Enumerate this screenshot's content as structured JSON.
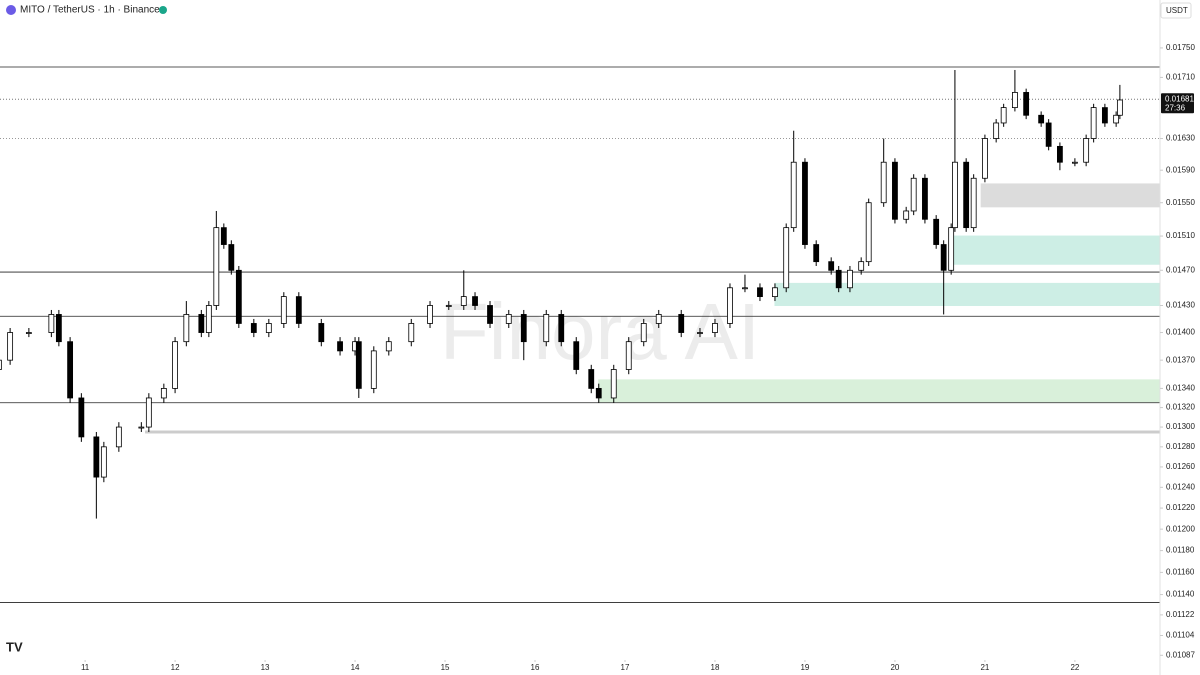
{
  "header": {
    "title": "MITO / TetherUS · 1h · Binance",
    "currency": "USDT"
  },
  "watermark": "Finora AI",
  "chart_data": {
    "type": "candlestick",
    "up_color": "#ffffff",
    "down_color": "#000000",
    "outline_color": "#000000",
    "log_scale": true,
    "ylim": [
      0.01083,
      0.01817
    ],
    "xlim": [
      -22.7,
      286.7
    ],
    "yticks": [
      {
        "value": 0.0175,
        "label": "0.01750"
      },
      {
        "value": 0.0171,
        "label": "0.01710"
      },
      {
        "value": 0.0163,
        "label": "0.01630"
      },
      {
        "value": 0.0159,
        "label": "0.01590"
      },
      {
        "value": 0.0155,
        "label": "0.01550"
      },
      {
        "value": 0.0151,
        "label": "0.01510"
      },
      {
        "value": 0.0147,
        "label": "0.01470"
      },
      {
        "value": 0.0143,
        "label": "0.01430"
      },
      {
        "value": 0.014,
        "label": "0.01400"
      },
      {
        "value": 0.0137,
        "label": "0.01370"
      },
      {
        "value": 0.0134,
        "label": "0.01340"
      },
      {
        "value": 0.0132,
        "label": "0.01320"
      },
      {
        "value": 0.013,
        "label": "0.01300"
      },
      {
        "value": 0.0128,
        "label": "0.01280"
      },
      {
        "value": 0.0126,
        "label": "0.01260"
      },
      {
        "value": 0.0124,
        "label": "0.01240"
      },
      {
        "value": 0.0122,
        "label": "0.01220"
      },
      {
        "value": 0.012,
        "label": "0.01200"
      },
      {
        "value": 0.0118,
        "label": "0.01180"
      },
      {
        "value": 0.0116,
        "label": "0.01160"
      },
      {
        "value": 0.0114,
        "label": "0.01140"
      },
      0.01122,
      0.01104,
      0.01087
    ],
    "xticks": [
      {
        "value": 0,
        "label": "11"
      },
      {
        "value": 24,
        "label": "12"
      },
      {
        "value": 48,
        "label": "13"
      },
      {
        "value": 72,
        "label": "14"
      },
      {
        "value": 96,
        "label": "15"
      },
      {
        "value": 120,
        "label": "16"
      },
      {
        "value": 144,
        "label": "17"
      },
      {
        "value": 168,
        "label": "18"
      },
      {
        "value": 192,
        "label": "19"
      },
      {
        "value": 216,
        "label": "20"
      },
      {
        "value": 240,
        "label": "21"
      },
      {
        "value": 264,
        "label": "22"
      }
    ],
    "x": [
      -23,
      -20,
      -15,
      -9,
      -7,
      -4,
      -1,
      3,
      5,
      9,
      15,
      17,
      21,
      24,
      27,
      31,
      33,
      35,
      37,
      39,
      41,
      45,
      49,
      53,
      57,
      63,
      68,
      72,
      73,
      77,
      81,
      87,
      92,
      97,
      101,
      104,
      108,
      113,
      117,
      123,
      127,
      131,
      135,
      137,
      141,
      145,
      149,
      153,
      159,
      164,
      168,
      172,
      176,
      180,
      184,
      187,
      189,
      192,
      195,
      199,
      201,
      204,
      207,
      209,
      213,
      216,
      219,
      221,
      224,
      227,
      229,
      231,
      232,
      235,
      237,
      240,
      243,
      245,
      248,
      251,
      255,
      257,
      260,
      264,
      267,
      269,
      272,
      275,
      276
    ],
    "open": [
      0.0136,
      0.0137,
      0.014,
      0.014,
      0.0142,
      0.0139,
      0.0133,
      0.0129,
      0.0125,
      0.0128,
      0.013,
      0.013,
      0.0133,
      0.0134,
      0.0139,
      0.0142,
      0.014,
      0.0143,
      0.0152,
      0.015,
      0.0147,
      0.0141,
      0.014,
      0.0141,
      0.0144,
      0.0141,
      0.0139,
      0.0138,
      0.0139,
      0.0134,
      0.0138,
      0.0139,
      0.0141,
      0.0143,
      0.0143,
      0.0144,
      0.0143,
      0.0141,
      0.0142,
      0.0139,
      0.0142,
      0.0139,
      0.0136,
      0.0134,
      0.0133,
      0.0136,
      0.0139,
      0.0141,
      0.0142,
      0.014,
      0.014,
      0.0141,
      0.0145,
      0.0145,
      0.0144,
      0.0145,
      0.0152,
      0.016,
      0.015,
      0.0148,
      0.0147,
      0.0145,
      0.0147,
      0.0148,
      0.0155,
      0.016,
      0.0153,
      0.0154,
      0.0158,
      0.0153,
      0.015,
      0.0147,
      0.0152,
      0.016,
      0.0152,
      0.0158,
      0.0163,
      0.0165,
      0.0167,
      0.0169,
      0.0166,
      0.0165,
      0.0162,
      0.016,
      0.016,
      0.0163,
      0.0167,
      0.0165,
      0.0166
    ],
    "high": [
      0.01375,
      0.01405,
      0.01405,
      0.01425,
      0.01425,
      0.01395,
      0.01335,
      0.01295,
      0.01285,
      0.01305,
      0.01305,
      0.01335,
      0.01345,
      0.01395,
      0.01435,
      0.01425,
      0.01435,
      0.0154,
      0.01525,
      0.01505,
      0.01475,
      0.01415,
      0.01415,
      0.01445,
      0.01445,
      0.01415,
      0.01395,
      0.01395,
      0.01395,
      0.01385,
      0.01395,
      0.01415,
      0.01435,
      0.01435,
      0.0147,
      0.01445,
      0.01435,
      0.01425,
      0.01425,
      0.01425,
      0.01425,
      0.01395,
      0.01365,
      0.01345,
      0.01365,
      0.01395,
      0.01415,
      0.01425,
      0.01425,
      0.01405,
      0.01415,
      0.01455,
      0.01465,
      0.01455,
      0.01455,
      0.01525,
      0.0164,
      0.01605,
      0.01505,
      0.01485,
      0.01475,
      0.01475,
      0.01485,
      0.01555,
      0.0163,
      0.01605,
      0.01545,
      0.01585,
      0.01585,
      0.01535,
      0.01505,
      0.01525,
      0.0172,
      0.01605,
      0.01585,
      0.01635,
      0.01655,
      0.01675,
      0.0172,
      0.01695,
      0.01665,
      0.01655,
      0.01625,
      0.01605,
      0.01635,
      0.01675,
      0.01675,
      0.01665,
      0.017
    ],
    "low": [
      0.01355,
      0.01365,
      0.01395,
      0.01395,
      0.01385,
      0.01325,
      0.01285,
      0.0121,
      0.01245,
      0.01275,
      0.01295,
      0.01295,
      0.01325,
      0.01335,
      0.01385,
      0.01395,
      0.01395,
      0.01425,
      0.01495,
      0.01465,
      0.01405,
      0.01395,
      0.01395,
      0.01405,
      0.01405,
      0.01385,
      0.01375,
      0.01375,
      0.0133,
      0.01335,
      0.01375,
      0.01385,
      0.01405,
      0.01425,
      0.01425,
      0.01425,
      0.01405,
      0.01405,
      0.0137,
      0.01385,
      0.01385,
      0.01355,
      0.01335,
      0.01325,
      0.01325,
      0.01355,
      0.01385,
      0.01405,
      0.01395,
      0.01395,
      0.01395,
      0.01405,
      0.01445,
      0.01435,
      0.01435,
      0.01445,
      0.01515,
      0.01495,
      0.01475,
      0.01465,
      0.01445,
      0.01445,
      0.01465,
      0.01475,
      0.01545,
      0.01525,
      0.01525,
      0.01535,
      0.01525,
      0.01495,
      0.0142,
      0.01465,
      0.01515,
      0.01515,
      0.01515,
      0.01575,
      0.01625,
      0.01645,
      0.01665,
      0.01655,
      0.01645,
      0.01615,
      0.0159,
      0.01595,
      0.01595,
      0.01625,
      0.01645,
      0.01645,
      0.01655
    ],
    "close": [
      0.0137,
      0.014,
      0.014,
      0.0142,
      0.0139,
      0.0133,
      0.0129,
      0.0125,
      0.0128,
      0.013,
      0.013,
      0.0133,
      0.0134,
      0.0139,
      0.0142,
      0.014,
      0.0143,
      0.0152,
      0.015,
      0.0147,
      0.0141,
      0.014,
      0.0141,
      0.0144,
      0.0141,
      0.0139,
      0.0138,
      0.0139,
      0.0134,
      0.0138,
      0.0139,
      0.0141,
      0.0143,
      0.0143,
      0.0144,
      0.0143,
      0.0141,
      0.0142,
      0.0139,
      0.0142,
      0.0139,
      0.0136,
      0.0134,
      0.0133,
      0.0136,
      0.0139,
      0.0141,
      0.0142,
      0.014,
      0.014,
      0.0141,
      0.0145,
      0.0145,
      0.0144,
      0.0145,
      0.0152,
      0.016,
      0.015,
      0.0148,
      0.0147,
      0.0145,
      0.0147,
      0.0148,
      0.0155,
      0.016,
      0.0153,
      0.0154,
      0.0158,
      0.0153,
      0.015,
      0.0147,
      0.0152,
      0.016,
      0.0152,
      0.0158,
      0.0163,
      0.0165,
      0.0167,
      0.0169,
      0.0166,
      0.0165,
      0.0162,
      0.016,
      0.016,
      0.0163,
      0.0167,
      0.0165,
      0.0166,
      0.0168
    ],
    "levels": [
      0.01724,
      0.01468,
      0.01418,
      0.01325,
      0.01133
    ],
    "support_line": {
      "value": 0.01295,
      "start": 16,
      "color": "#cccccc"
    },
    "dotted_levels": [
      0.0163
    ],
    "last_price": 0.01681,
    "countdown": "27:36",
    "zones": [
      {
        "low": 0.01545,
        "high": 0.01573,
        "start": 239,
        "color": "#dcdcdc"
      },
      {
        "low": 0.01477,
        "high": 0.0151,
        "start": 231,
        "color": "#cdeee5"
      },
      {
        "low": 0.0143,
        "high": 0.01455,
        "start": 184,
        "color": "#cdeee5"
      },
      {
        "low": 0.01326,
        "high": 0.01349,
        "start": 137,
        "color": "#d9f0da"
      }
    ]
  }
}
